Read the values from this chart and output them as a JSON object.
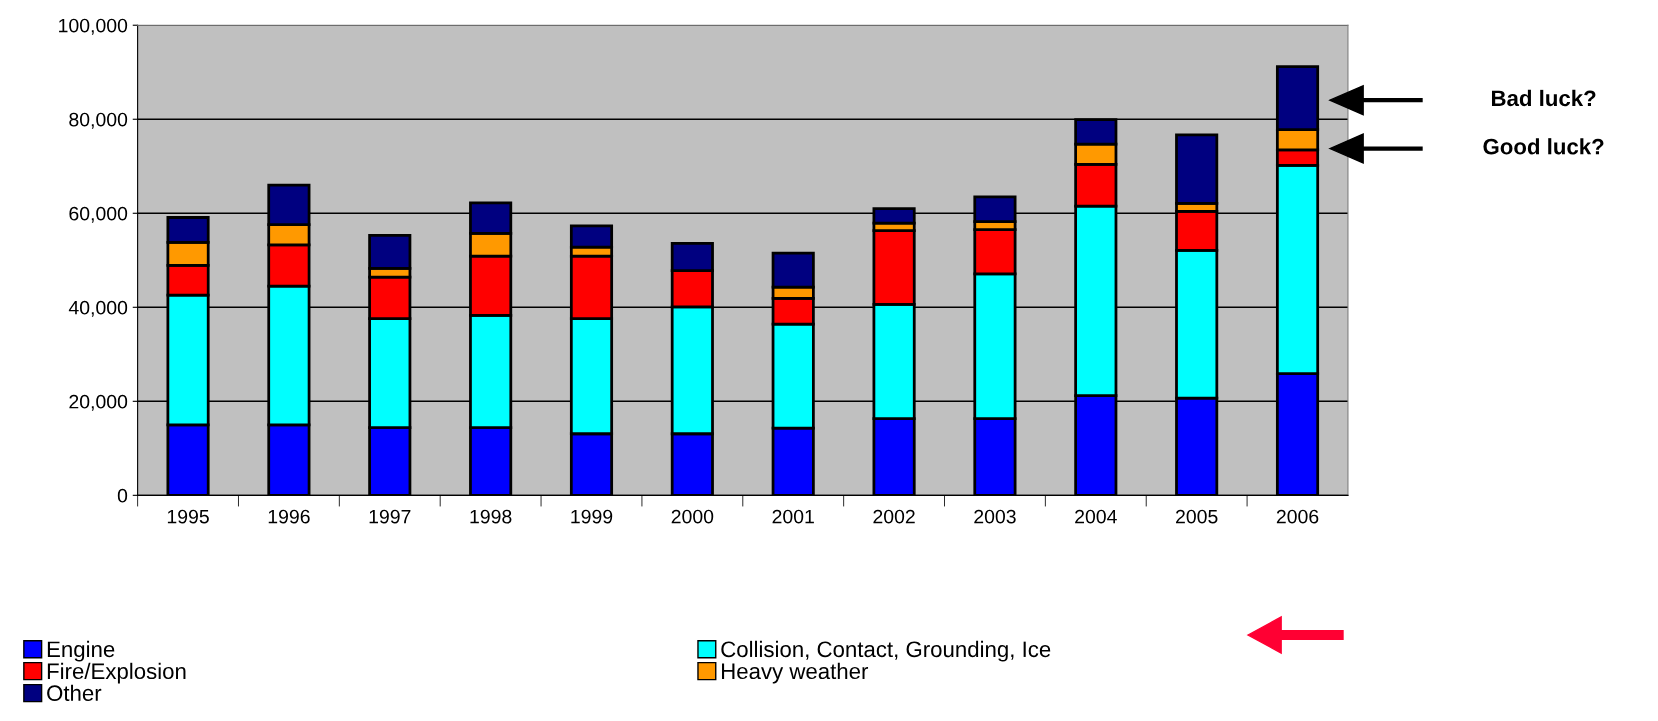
{
  "chart_data": {
    "type": "bar",
    "stacked": true,
    "categories": [
      "1995",
      "1996",
      "1997",
      "1998",
      "1999",
      "2000",
      "2001",
      "2002",
      "2003",
      "2004",
      "2005",
      "2006"
    ],
    "series": [
      {
        "name": "Engine",
        "color": "#0000ff",
        "values": [
          15000,
          15000,
          14400,
          14400,
          13100,
          13100,
          14300,
          16300,
          16300,
          21200,
          20700,
          25900
        ]
      },
      {
        "name": "Collision, Contact, Grounding, Ice",
        "color": "#00ffff",
        "values": [
          27600,
          29500,
          23200,
          23900,
          24500,
          27000,
          22100,
          24300,
          30800,
          40300,
          31400,
          44300
        ]
      },
      {
        "name": "Fire/Explosion",
        "color": "#ff0000",
        "values": [
          6300,
          8800,
          8800,
          12600,
          13300,
          7700,
          5500,
          15700,
          9400,
          8900,
          8300,
          3300
        ]
      },
      {
        "name": "Heavy weather",
        "color": "#ff9900",
        "values": [
          4900,
          4300,
          1900,
          4800,
          1900,
          null,
          2400,
          1600,
          1700,
          4300,
          1700,
          4300
        ]
      },
      {
        "name": "Other",
        "color": "#000080",
        "values": [
          5300,
          8400,
          7000,
          6500,
          4500,
          5800,
          7200,
          3100,
          5300,
          5200,
          14600,
          13400
        ]
      }
    ],
    "ylim": [
      0,
      100000
    ],
    "yticks": [
      0,
      {
        "value": 20000,
        "label": "20,000"
      },
      {
        "value": 40000,
        "label": "40,000"
      },
      {
        "value": 60000,
        "label": "60,000"
      },
      {
        "value": 80000,
        "label": "80,000"
      },
      {
        "value": 100000,
        "label": "100,000"
      }
    ],
    "grid": "y",
    "legend": "bottom",
    "annotations": [
      "Bad luck?",
      "Good luck?"
    ]
  }
}
